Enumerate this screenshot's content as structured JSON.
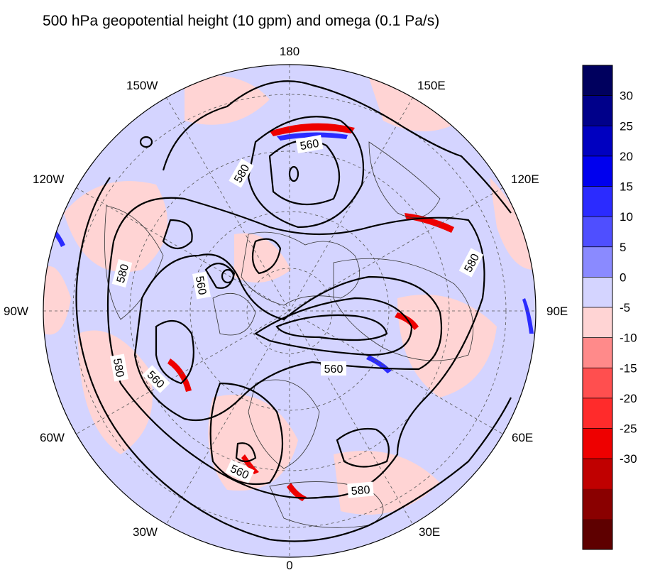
{
  "title": "500 hPa geopotential height (10 gpm) and omega (0.1 Pa/s)",
  "longitude_labels": {
    "top": "180",
    "bottom": "0",
    "left": "90W",
    "right": "90E",
    "upper_left": "150W",
    "upper_right": "150E",
    "mid_left_upper": "120W",
    "mid_right_upper": "120E",
    "mid_left_lower": "60W",
    "mid_right_lower": "60E",
    "lower_left": "30W",
    "lower_right": "30E"
  },
  "colorbar": {
    "labels": [
      "30",
      "25",
      "20",
      "15",
      "10",
      "5",
      "0",
      "-5",
      "-10",
      "-15",
      "-20",
      "-25",
      "-30"
    ],
    "colors": [
      "#00005e",
      "#00008a",
      "#0000c0",
      "#0000ee",
      "#2b2bff",
      "#4f4fff",
      "#8a8aff",
      "#d4d4ff",
      "#ffd4d4",
      "#ff8a8a",
      "#ff4f4f",
      "#ff2b2b",
      "#ee0000",
      "#c00000",
      "#8a0000",
      "#5e0000"
    ]
  },
  "contour_labels": {
    "c1": "560",
    "c2": "580",
    "c3": "580",
    "c4": "560",
    "c5": "580",
    "c6": "560",
    "c7": "560",
    "c8": "580",
    "c9": "580",
    "c10": "560"
  },
  "map_colors": {
    "background": "#d4d4ff",
    "negative": "#ffd4d4",
    "contour": "#000000"
  }
}
